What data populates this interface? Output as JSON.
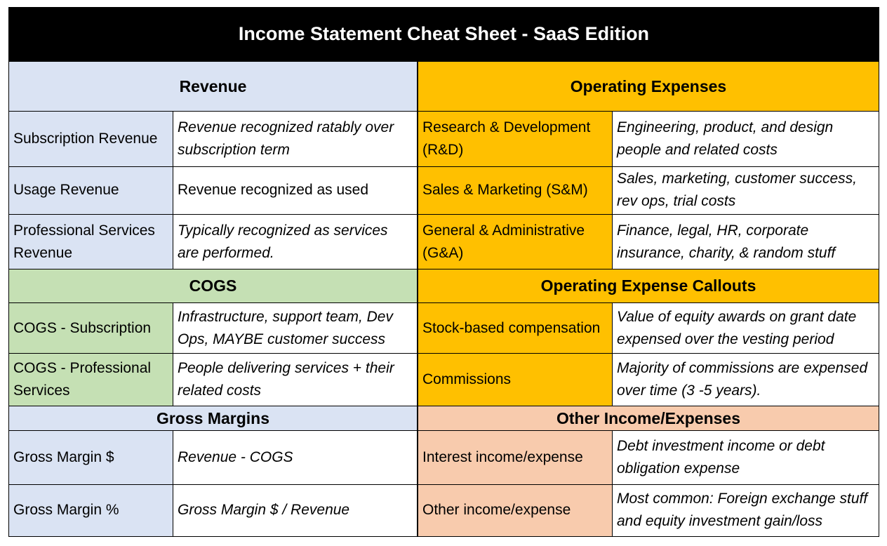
{
  "title": "Income Statement Cheat Sheet - SaaS Edition",
  "colors": {
    "blue": "#dae3f3",
    "green": "#c5e0b4",
    "gold": "#ffc000",
    "salmon": "#f8cbad",
    "title_bg": "#000000"
  },
  "left": {
    "revenue": {
      "header": "Revenue",
      "rows": [
        {
          "name": "Subscription Revenue",
          "desc": "Revenue recognized ratably over subscription term"
        },
        {
          "name": "Usage Revenue",
          "desc": "Revenue recognized as used"
        },
        {
          "name": "Professional Services Revenue",
          "desc": "Typically recognized as services are performed."
        }
      ]
    },
    "cogs": {
      "header": "COGS",
      "rows": [
        {
          "name": "COGS - Subscription",
          "desc": "Infrastructure, support team, Dev Ops, MAYBE customer success"
        },
        {
          "name": "COGS - Professional Services",
          "desc": "People delivering services + their related costs"
        }
      ]
    },
    "gross_margins": {
      "header": "Gross Margins",
      "rows": [
        {
          "name": "Gross Margin $",
          "desc": "Revenue - COGS"
        },
        {
          "name": "Gross Margin %",
          "desc": "Gross Margin $ / Revenue"
        }
      ]
    }
  },
  "right": {
    "opex": {
      "header": "Operating Expenses",
      "rows": [
        {
          "name": "Research & Development (R&D)",
          "desc": "Engineering, product, and design people and related costs"
        },
        {
          "name": "Sales & Marketing (S&M)",
          "desc": "Sales, marketing, customer success, rev ops, trial costs"
        },
        {
          "name": "General & Administrative (G&A)",
          "desc": "Finance, legal, HR, corporate insurance, charity, & random stuff"
        }
      ]
    },
    "callouts": {
      "header": "Operating Expense Callouts",
      "rows": [
        {
          "name": "Stock-based compensation",
          "desc": "Value of equity awards on grant date expensed over the vesting period"
        },
        {
          "name": "Commissions",
          "desc": "Majority of commissions are expensed over time (3 -5 years)."
        }
      ]
    },
    "other": {
      "header": "Other Income/Expenses",
      "rows": [
        {
          "name": "Interest income/expense",
          "desc": "Debt investment income or debt obligation expense"
        },
        {
          "name": "Other income/expense",
          "desc": "Most common: Foreign exchange stuff and equity investment gain/loss"
        }
      ]
    }
  }
}
